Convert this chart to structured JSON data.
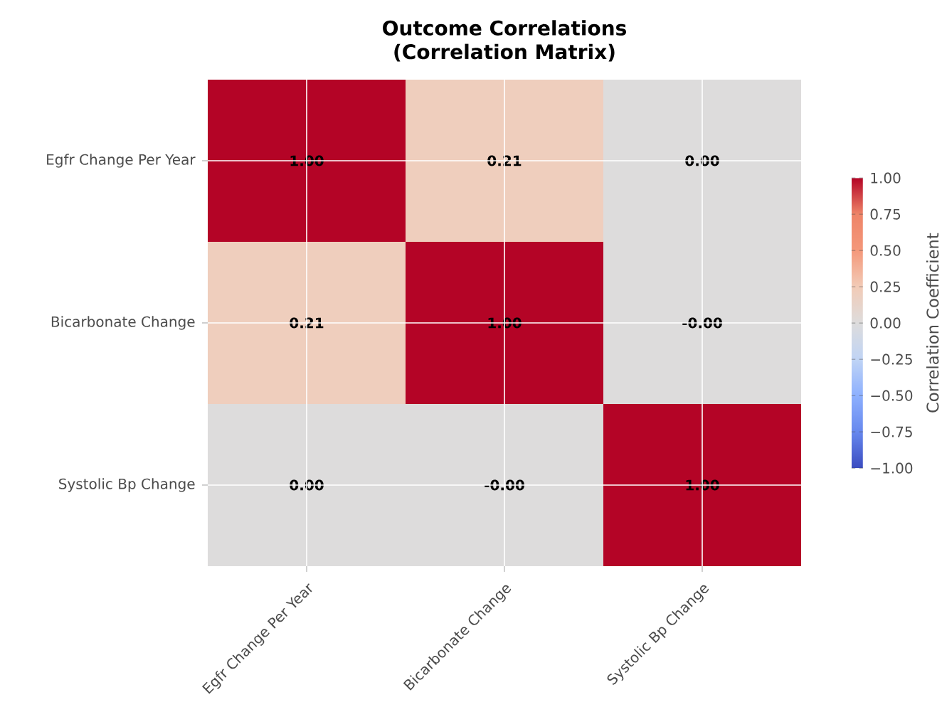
{
  "chart_data": {
    "type": "heatmap",
    "title": "Outcome Correlations",
    "subtitle": "(Correlation Matrix)",
    "categories": [
      "Egfr Change Per Year",
      "Bicarbonate Change",
      "Systolic Bp Change"
    ],
    "y_categories": [
      "Egfr Change Per Year",
      "Bicarbonate Change",
      "Systolic Bp Change"
    ],
    "cells": [
      [
        1.0,
        0.21,
        0.0
      ],
      [
        0.21,
        1.0,
        0.0
      ],
      [
        0.0,
        0.0,
        1.0
      ]
    ],
    "cell_labels": [
      [
        "1.00",
        "0.21",
        "0.00"
      ],
      [
        "0.21",
        "1.00",
        "-0.00"
      ],
      [
        "0.00",
        "-0.00",
        "1.00"
      ]
    ],
    "clabel": "Correlation Coefficient",
    "clim": [
      -1,
      1
    ],
    "cticks": [
      {
        "value": -1,
        "label": "−1.00"
      },
      {
        "value": -0.75,
        "label": "−0.75"
      },
      {
        "value": -0.5,
        "label": "−0.50"
      },
      {
        "value": -0.25,
        "label": "−0.25"
      },
      {
        "value": 0,
        "label": "0.00"
      },
      {
        "value": 0.25,
        "label": "0.25"
      },
      {
        "value": 0.5,
        "label": "0.50"
      },
      {
        "value": 0.75,
        "label": "0.75"
      },
      {
        "value": 1,
        "label": "1.00"
      }
    ],
    "grid": true,
    "data_labels": true
  }
}
